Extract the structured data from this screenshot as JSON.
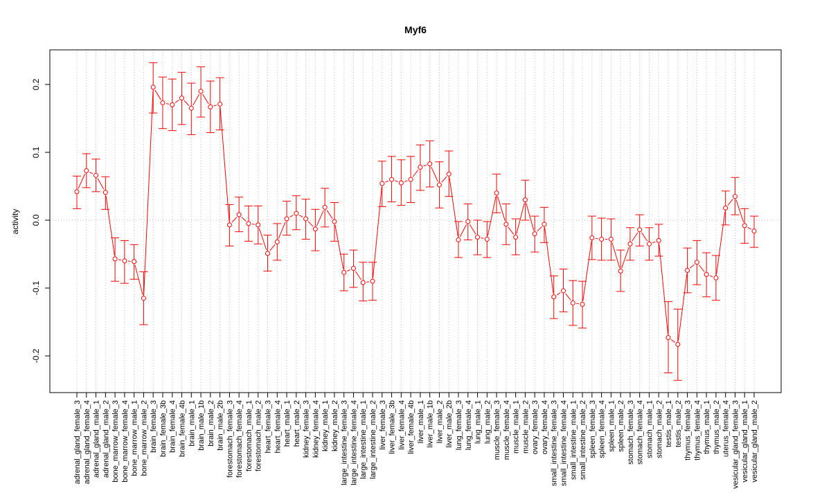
{
  "chart_data": {
    "type": "line",
    "title": "Myf6",
    "xlabel": "",
    "ylabel": "activity",
    "ylim": [
      -0.255,
      0.25
    ],
    "yticks": [
      -0.2,
      -0.1,
      0.0,
      0.1,
      0.2
    ],
    "ytick_labels": [
      "-0.2",
      "-0.1",
      "0.0",
      "0.1",
      "0.2"
    ],
    "grid": true,
    "color": "#ff0000",
    "categories": [
      "adrenal_gland_female_3",
      "adrenal_gland_female_4",
      "adrenal_gland_male_1",
      "adrenal_gland_male_2",
      "bone_marrow_female_3",
      "bone_marrow_female_4",
      "bone_marrow_male_1",
      "bone_marrow_male_2",
      "brain_female_3",
      "brain_female_3b",
      "brain_female_4",
      "brain_female_4b",
      "brain_male_1",
      "brain_male_1b",
      "brain_male_2",
      "brain_male_2b",
      "forestomach_female_3",
      "forestomach_female_4",
      "forestomach_male_1",
      "forestomach_male_2",
      "heart_female_3",
      "heart_female_4",
      "heart_male_1",
      "heart_male_2",
      "kidney_female_3",
      "kidney_female_4",
      "kidney_male_1",
      "kidney_male_2",
      "large_intestine_female_3",
      "large_intestine_female_4",
      "large_intestine_male_1",
      "large_intestine_male_2",
      "liver_female_3",
      "liver_female_3b",
      "liver_female_4",
      "liver_female_4b",
      "liver_male_1",
      "liver_male_1b",
      "liver_male_2",
      "liver_male_2b",
      "lung_female_3",
      "lung_female_4",
      "lung_male_1",
      "lung_male_2",
      "muscle_female_3",
      "muscle_female_4",
      "muscle_male_1",
      "muscle_male_2",
      "ovary_female_3",
      "ovary_female_4",
      "small_intestine_female_3",
      "small_intestine_female_4",
      "small_intestine_male_1",
      "small_intestine_male_2",
      "spleen_female_3",
      "spleen_female_4",
      "spleen_male_1",
      "spleen_male_2",
      "stomach_female_3",
      "stomach_female_4",
      "stomach_male_1",
      "stomach_male_2",
      "testis_male_1",
      "testis_male_2",
      "thymus_female_3",
      "thymus_female_4",
      "thymus_male_1",
      "thymus_male_2",
      "uterus_female_4",
      "vesicular_gland_female_3",
      "vesicular_gland_male_1",
      "vesicular_gland_male_2"
    ],
    "values": [
      0.042,
      0.073,
      0.066,
      0.041,
      -0.057,
      -0.06,
      -0.061,
      -0.115,
      0.196,
      0.173,
      0.17,
      0.18,
      0.165,
      0.19,
      0.167,
      0.171,
      -0.007,
      0.008,
      -0.005,
      -0.007,
      -0.049,
      -0.032,
      0.002,
      0.01,
      0.002,
      -0.013,
      0.019,
      -0.002,
      -0.077,
      -0.071,
      -0.092,
      -0.09,
      0.054,
      0.06,
      0.055,
      0.06,
      0.078,
      0.083,
      0.052,
      0.068,
      -0.029,
      -0.002,
      -0.025,
      -0.028,
      0.04,
      -0.006,
      -0.025,
      0.03,
      -0.02,
      -0.006,
      -0.113,
      -0.104,
      -0.122,
      -0.124,
      -0.026,
      -0.028,
      -0.028,
      -0.075,
      -0.035,
      -0.014,
      -0.035,
      -0.03,
      -0.173,
      -0.183,
      -0.074,
      -0.062,
      -0.08,
      -0.085,
      0.018,
      0.035,
      -0.008,
      -0.016
    ],
    "upper": [
      0.065,
      0.098,
      0.09,
      0.064,
      -0.026,
      -0.03,
      -0.036,
      -0.076,
      0.232,
      0.211,
      0.208,
      0.218,
      0.202,
      0.226,
      0.205,
      0.21,
      0.023,
      0.034,
      0.021,
      0.021,
      -0.022,
      -0.005,
      0.028,
      0.036,
      0.031,
      0.016,
      0.047,
      0.026,
      -0.05,
      -0.044,
      -0.062,
      -0.062,
      0.087,
      0.094,
      0.089,
      0.094,
      0.111,
      0.117,
      0.086,
      0.102,
      -0.002,
      0.024,
      0.0,
      -0.002,
      0.068,
      0.024,
      0.002,
      0.059,
      0.006,
      0.019,
      -0.082,
      -0.072,
      -0.089,
      -0.09,
      0.006,
      0.003,
      0.002,
      -0.044,
      -0.011,
      0.008,
      -0.011,
      -0.006,
      -0.12,
      -0.131,
      -0.041,
      -0.03,
      -0.048,
      -0.052,
      0.043,
      0.063,
      0.017,
      0.006
    ],
    "lower": [
      0.017,
      0.048,
      0.042,
      0.016,
      -0.09,
      -0.093,
      -0.087,
      -0.154,
      0.158,
      0.135,
      0.132,
      0.141,
      0.126,
      0.152,
      0.129,
      0.133,
      -0.038,
      -0.017,
      -0.031,
      -0.035,
      -0.075,
      -0.059,
      -0.022,
      -0.014,
      -0.028,
      -0.045,
      -0.01,
      -0.031,
      -0.104,
      -0.099,
      -0.119,
      -0.118,
      0.02,
      0.027,
      0.022,
      0.026,
      0.044,
      0.049,
      0.018,
      0.035,
      -0.055,
      -0.029,
      -0.051,
      -0.055,
      0.011,
      -0.036,
      -0.051,
      0.0,
      -0.047,
      -0.033,
      -0.145,
      -0.135,
      -0.155,
      -0.159,
      -0.058,
      -0.059,
      -0.059,
      -0.105,
      -0.059,
      -0.038,
      -0.059,
      -0.053,
      -0.225,
      -0.236,
      -0.107,
      -0.095,
      -0.113,
      -0.118,
      -0.007,
      0.008,
      -0.034,
      -0.04
    ]
  }
}
